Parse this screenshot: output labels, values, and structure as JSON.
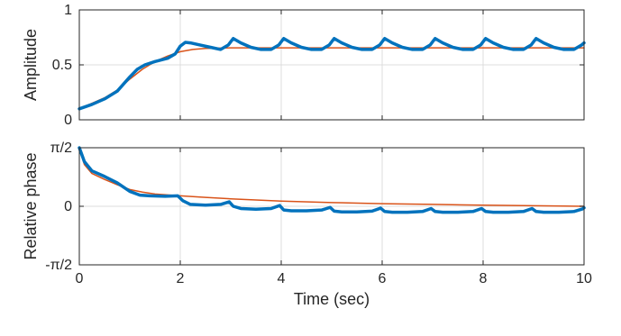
{
  "chart_data": [
    {
      "type": "line",
      "ylabel": "Amplitude",
      "xlabel": "",
      "xlim": [
        0,
        10
      ],
      "ylim": [
        0,
        1
      ],
      "xticks": [
        0,
        2,
        4,
        6,
        8,
        10
      ],
      "yticks": [
        {
          "value": 0,
          "label": "0"
        },
        {
          "value": 0.5,
          "label": "0.5"
        },
        {
          "value": 1,
          "label": "1"
        }
      ],
      "show_xtick_labels": false,
      "grid": true,
      "series": [
        {
          "color": "#D95319",
          "linewidth": 1.5,
          "x": [
            0,
            0.25,
            0.5,
            0.75,
            1.0,
            1.25,
            1.5,
            1.75,
            2.0,
            2.25,
            2.5,
            3,
            4,
            5,
            6,
            7,
            8,
            9,
            10
          ],
          "y": [
            0.1,
            0.15,
            0.2,
            0.27,
            0.37,
            0.46,
            0.53,
            0.58,
            0.62,
            0.64,
            0.65,
            0.655,
            0.655,
            0.655,
            0.655,
            0.655,
            0.655,
            0.655,
            0.655
          ]
        },
        {
          "color": "#0072BD",
          "linewidth": 3.5,
          "x": [
            0,
            0.25,
            0.5,
            0.75,
            1.0,
            1.15,
            1.3,
            1.5,
            1.75,
            1.9,
            2.0,
            2.1,
            2.2,
            2.4,
            2.6,
            2.8,
            2.95,
            3.05,
            3.2,
            3.4,
            3.6,
            3.8,
            3.95,
            4.05,
            4.2,
            4.4,
            4.6,
            4.8,
            4.95,
            5.05,
            5.2,
            5.4,
            5.6,
            5.8,
            5.95,
            6.05,
            6.2,
            6.4,
            6.6,
            6.8,
            6.95,
            7.05,
            7.2,
            7.4,
            7.6,
            7.8,
            7.95,
            8.05,
            8.2,
            8.4,
            8.6,
            8.8,
            8.95,
            9.05,
            9.2,
            9.4,
            9.6,
            9.8,
            9.95,
            10.0
          ],
          "y": [
            0.1,
            0.14,
            0.19,
            0.26,
            0.39,
            0.46,
            0.5,
            0.53,
            0.56,
            0.6,
            0.67,
            0.705,
            0.7,
            0.68,
            0.66,
            0.64,
            0.68,
            0.74,
            0.7,
            0.66,
            0.64,
            0.64,
            0.68,
            0.74,
            0.7,
            0.66,
            0.64,
            0.64,
            0.68,
            0.74,
            0.7,
            0.66,
            0.64,
            0.64,
            0.68,
            0.74,
            0.7,
            0.66,
            0.64,
            0.64,
            0.68,
            0.74,
            0.7,
            0.66,
            0.64,
            0.64,
            0.68,
            0.74,
            0.7,
            0.66,
            0.64,
            0.64,
            0.68,
            0.74,
            0.7,
            0.66,
            0.64,
            0.64,
            0.68,
            0.7
          ]
        }
      ]
    },
    {
      "type": "line",
      "ylabel": "Relative phase",
      "xlabel": "Time (sec)",
      "xlim": [
        0,
        10
      ],
      "ylim": [
        -1.5708,
        1.5708
      ],
      "xticks": [
        0,
        2,
        4,
        6,
        8,
        10
      ],
      "yticks": [
        {
          "value": -1.5708,
          "label": "-π/2"
        },
        {
          "value": 0,
          "label": "0"
        },
        {
          "value": 1.5708,
          "label": "π/2"
        }
      ],
      "show_xtick_labels": true,
      "grid": true,
      "series": [
        {
          "color": "#D95319",
          "linewidth": 1.5,
          "x": [
            0,
            0.1,
            0.25,
            0.5,
            0.75,
            1.0,
            1.25,
            1.5,
            2,
            2.5,
            3,
            4,
            5,
            6,
            7,
            8,
            9,
            10
          ],
          "y": [
            1.57,
            1.12,
            0.88,
            0.72,
            0.58,
            0.45,
            0.38,
            0.33,
            0.28,
            0.24,
            0.2,
            0.14,
            0.1,
            0.07,
            0.05,
            0.03,
            0.015,
            0.0
          ]
        },
        {
          "color": "#0072BD",
          "linewidth": 3.5,
          "x": [
            0,
            0.1,
            0.25,
            0.5,
            0.75,
            1.0,
            1.2,
            1.4,
            1.7,
            1.95,
            2.05,
            2.2,
            2.5,
            2.8,
            2.97,
            3.05,
            3.2,
            3.5,
            3.8,
            3.97,
            4.05,
            4.2,
            4.5,
            4.8,
            4.97,
            5.05,
            5.2,
            5.5,
            5.8,
            5.97,
            6.05,
            6.2,
            6.5,
            6.8,
            6.97,
            7.05,
            7.2,
            7.5,
            7.8,
            7.97,
            8.05,
            8.2,
            8.5,
            8.8,
            8.97,
            9.05,
            9.2,
            9.5,
            9.8,
            9.97,
            10.0
          ],
          "y": [
            1.57,
            1.2,
            0.95,
            0.8,
            0.63,
            0.4,
            0.3,
            0.28,
            0.27,
            0.28,
            0.15,
            0.05,
            0.03,
            0.05,
            0.12,
            0.0,
            -0.06,
            -0.08,
            -0.06,
            0.02,
            -0.1,
            -0.12,
            -0.12,
            -0.1,
            -0.03,
            -0.13,
            -0.15,
            -0.15,
            -0.13,
            -0.05,
            -0.14,
            -0.16,
            -0.16,
            -0.14,
            -0.06,
            -0.14,
            -0.16,
            -0.16,
            -0.14,
            -0.06,
            -0.14,
            -0.16,
            -0.16,
            -0.14,
            -0.06,
            -0.14,
            -0.16,
            -0.16,
            -0.14,
            -0.07,
            -0.04
          ]
        }
      ]
    }
  ]
}
